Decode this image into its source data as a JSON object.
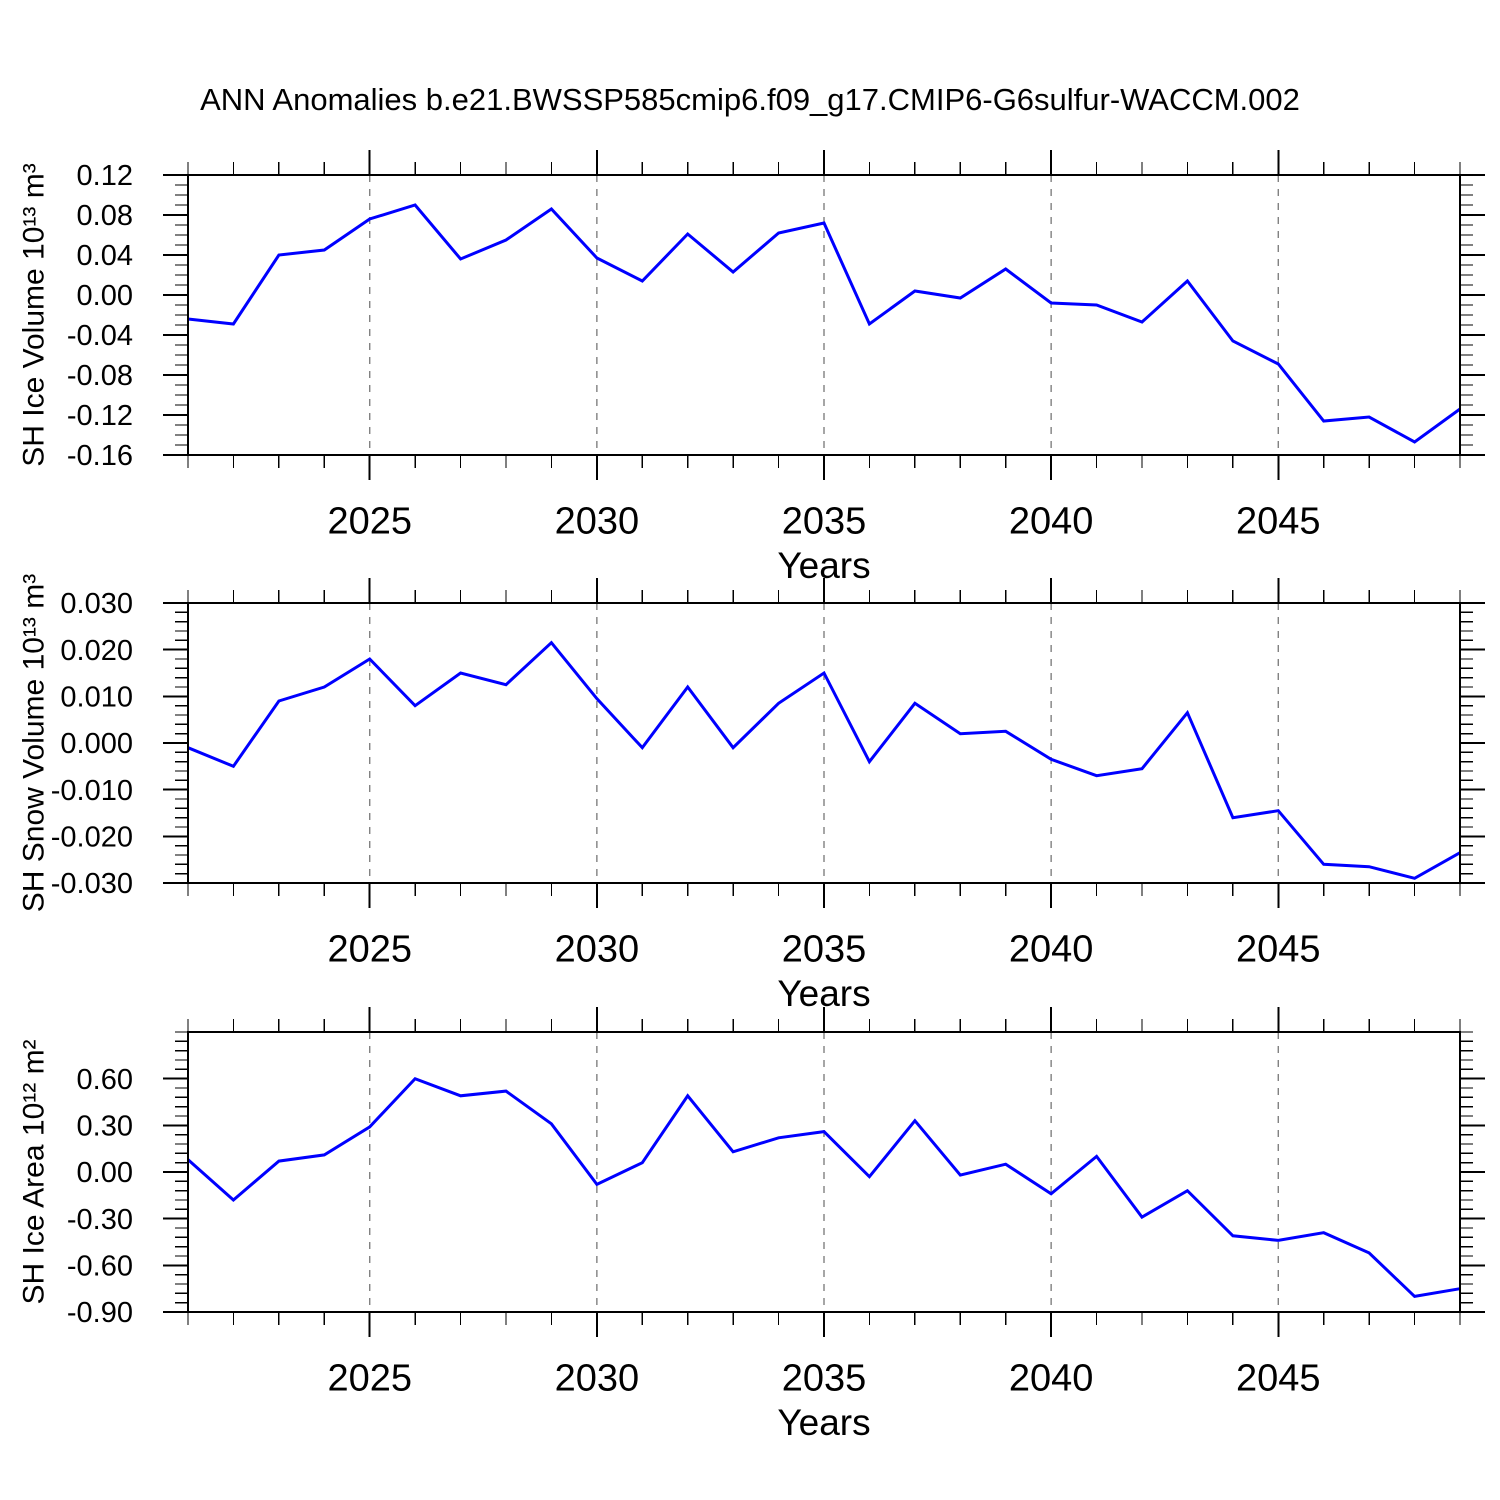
{
  "title": "ANN Anomalies b.e21.BWSSP585cmip6.f09_g17.CMIP6-G6sulfur-WACCM.002",
  "colors": {
    "line": "#0000ff",
    "axis": "#000000",
    "grid": "#808080",
    "text": "#000000",
    "background": "#ffffff"
  },
  "chart_data": [
    {
      "type": "line",
      "name": "sh-ice-volume",
      "ylabel": "SH Ice Volume 10¹³ m³",
      "xlabel": "Years",
      "xlim": [
        2021,
        2049
      ],
      "ylim": [
        -0.16,
        0.12
      ],
      "grid": "vertical-dashed",
      "legend": "none",
      "x": [
        2021,
        2022,
        2023,
        2024,
        2025,
        2026,
        2027,
        2028,
        2029,
        2030,
        2031,
        2032,
        2033,
        2034,
        2035,
        2036,
        2037,
        2038,
        2039,
        2040,
        2041,
        2042,
        2043,
        2044,
        2045,
        2046,
        2047,
        2048,
        2049
      ],
      "values": [
        -0.024,
        -0.029,
        0.04,
        0.045,
        0.076,
        0.09,
        0.036,
        0.055,
        0.086,
        0.037,
        0.014,
        0.061,
        0.023,
        0.062,
        0.072,
        -0.029,
        0.004,
        -0.003,
        0.026,
        -0.008,
        -0.01,
        -0.027,
        0.014,
        -0.046,
        -0.069,
        -0.126,
        -0.122,
        -0.147,
        -0.114
      ],
      "yticks": [
        {
          "v": 0.12,
          "label": "0.12"
        },
        {
          "v": 0.08,
          "label": "0.08"
        },
        {
          "v": 0.04,
          "label": "0.04"
        },
        {
          "v": 0.0,
          "label": "0.00"
        },
        {
          "v": -0.04,
          "label": "-0.04"
        },
        {
          "v": -0.08,
          "label": "-0.08"
        },
        {
          "v": -0.12,
          "label": "-0.12"
        },
        {
          "v": -0.16,
          "label": "-0.16"
        }
      ],
      "ytick_minor_step": 0.01,
      "xticks_major": [
        {
          "v": 2025,
          "label": "2025"
        },
        {
          "v": 2030,
          "label": "2030"
        },
        {
          "v": 2035,
          "label": "2035"
        },
        {
          "v": 2040,
          "label": "2040"
        },
        {
          "v": 2045,
          "label": "2045"
        }
      ],
      "xtick_minor_step": 1
    },
    {
      "type": "line",
      "name": "sh-snow-volume",
      "ylabel": "SH Snow Volume 10¹³ m³",
      "xlabel": "Years",
      "xlim": [
        2021,
        2049
      ],
      "ylim": [
        -0.03,
        0.03
      ],
      "grid": "vertical-dashed",
      "legend": "none",
      "x": [
        2021,
        2022,
        2023,
        2024,
        2025,
        2026,
        2027,
        2028,
        2029,
        2030,
        2031,
        2032,
        2033,
        2034,
        2035,
        2036,
        2037,
        2038,
        2039,
        2040,
        2041,
        2042,
        2043,
        2044,
        2045,
        2046,
        2047,
        2048,
        2049
      ],
      "values": [
        -0.001,
        -0.005,
        0.009,
        0.012,
        0.018,
        0.008,
        0.015,
        0.0125,
        0.0215,
        0.0095,
        -0.001,
        0.012,
        -0.001,
        0.0085,
        0.015,
        -0.004,
        0.0085,
        0.002,
        0.0025,
        -0.0035,
        -0.007,
        -0.0055,
        0.0065,
        -0.016,
        -0.0145,
        -0.026,
        -0.0265,
        -0.029,
        -0.0235
      ],
      "yticks": [
        {
          "v": 0.03,
          "label": "0.030"
        },
        {
          "v": 0.02,
          "label": "0.020"
        },
        {
          "v": 0.01,
          "label": "0.010"
        },
        {
          "v": 0.0,
          "label": "0.000"
        },
        {
          "v": -0.01,
          "label": "-0.010"
        },
        {
          "v": -0.02,
          "label": "-0.020"
        },
        {
          "v": -0.03,
          "label": "-0.030"
        }
      ],
      "ytick_minor_step": 0.002,
      "xticks_major": [
        {
          "v": 2025,
          "label": "2025"
        },
        {
          "v": 2030,
          "label": "2030"
        },
        {
          "v": 2035,
          "label": "2035"
        },
        {
          "v": 2040,
          "label": "2040"
        },
        {
          "v": 2045,
          "label": "2045"
        }
      ],
      "xtick_minor_step": 1
    },
    {
      "type": "line",
      "name": "sh-ice-area",
      "ylabel": "SH Ice Area 10¹² m²",
      "xlabel": "Years",
      "xlim": [
        2021,
        2049
      ],
      "ylim": [
        -0.9,
        0.9
      ],
      "grid": "vertical-dashed",
      "legend": "none",
      "x": [
        2021,
        2022,
        2023,
        2024,
        2025,
        2026,
        2027,
        2028,
        2029,
        2030,
        2031,
        2032,
        2033,
        2034,
        2035,
        2036,
        2037,
        2038,
        2039,
        2040,
        2041,
        2042,
        2043,
        2044,
        2045,
        2046,
        2047,
        2048,
        2049
      ],
      "values": [
        0.08,
        -0.18,
        0.07,
        0.11,
        0.29,
        0.6,
        0.49,
        0.52,
        0.31,
        -0.08,
        0.06,
        0.49,
        0.13,
        0.22,
        0.26,
        -0.03,
        0.33,
        -0.02,
        0.05,
        -0.14,
        0.1,
        -0.29,
        -0.12,
        -0.41,
        -0.44,
        -0.39,
        -0.52,
        -0.8,
        -0.75
      ],
      "yticks": [
        {
          "v": 0.6,
          "label": "0.60"
        },
        {
          "v": 0.3,
          "label": "0.30"
        },
        {
          "v": 0.0,
          "label": "0.00"
        },
        {
          "v": -0.3,
          "label": "-0.30"
        },
        {
          "v": -0.6,
          "label": "-0.60"
        },
        {
          "v": -0.9,
          "label": "-0.90"
        }
      ],
      "ytick_minor_step": 0.06,
      "xticks_major": [
        {
          "v": 2025,
          "label": "2025"
        },
        {
          "v": 2030,
          "label": "2030"
        },
        {
          "v": 2035,
          "label": "2035"
        },
        {
          "v": 2040,
          "label": "2040"
        },
        {
          "v": 2045,
          "label": "2045"
        }
      ],
      "xtick_minor_step": 1
    }
  ]
}
